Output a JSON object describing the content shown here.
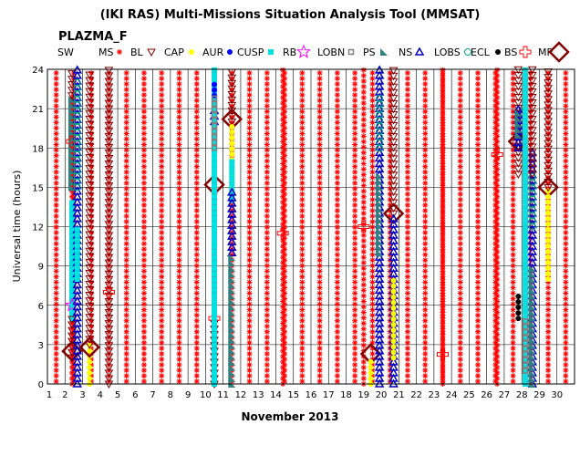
{
  "chart_data": {
    "type": "scatter",
    "title": "(IKI RAS) Multi-Missions Situation Analysis Tool (MMSAT)",
    "subtitle": "PLAZMA_F",
    "xlabel": "November 2013",
    "ylabel": "Universal time (hours)",
    "xlim": [
      1,
      31
    ],
    "ylim": [
      0,
      24
    ],
    "x_ticks": [
      1,
      2,
      3,
      4,
      5,
      6,
      7,
      8,
      9,
      10,
      11,
      12,
      13,
      14,
      15,
      16,
      17,
      18,
      19,
      20,
      21,
      22,
      23,
      24,
      25,
      26,
      27,
      28,
      29,
      30
    ],
    "y_ticks": [
      0,
      3,
      6,
      9,
      12,
      15,
      18,
      21,
      24
    ],
    "grid": true,
    "legend_position": "top",
    "legend": [
      {
        "label": "SW",
        "marker": "none",
        "color": "#000000"
      },
      {
        "label": "MS",
        "marker": "asterisk",
        "color": "#ff0000"
      },
      {
        "label": "BL",
        "marker": "triangle-down",
        "color": "#800000"
      },
      {
        "label": "CAP",
        "marker": "dot",
        "color": "#ffff00"
      },
      {
        "label": "AUR",
        "marker": "dot",
        "color": "#0000ff"
      },
      {
        "label": "CUSP",
        "marker": "square",
        "color": "#00e0e0"
      },
      {
        "label": "RB",
        "marker": "star",
        "color": "#ff00ff"
      },
      {
        "label": "LOBN",
        "marker": "small-square",
        "color": "#808080"
      },
      {
        "label": "PS",
        "marker": "right-triangle",
        "color": "#308080"
      },
      {
        "label": "NS",
        "marker": "triangle-up",
        "color": "#0000c0"
      },
      {
        "label": "LOBS",
        "marker": "circle",
        "color": "#00b080"
      },
      {
        "label": "ECL",
        "marker": "dot",
        "color": "#000000"
      },
      {
        "label": "BS",
        "marker": "cross",
        "color": "#ff0000"
      },
      {
        "label": "MP",
        "marker": "diamond",
        "color": "#800000"
      }
    ],
    "orbits": [
      {
        "x": 2.4,
        "segments": [
          [
            "MS",
            0,
            22
          ],
          [
            "PS",
            15,
            22
          ],
          [
            "CUSP",
            5,
            14
          ],
          [
            "BL",
            2,
            5
          ],
          [
            "RB",
            5,
            7
          ],
          [
            "MP",
            2.5,
            2.5
          ],
          [
            "BS",
            17,
            20
          ],
          [
            "BL",
            22,
            24
          ]
        ]
      },
      {
        "x": 2.7,
        "segments": [
          [
            "NS",
            0,
            24
          ],
          [
            "LOBS",
            15,
            23
          ],
          [
            "CUSP",
            8,
            12
          ]
        ]
      },
      {
        "x": 3.4,
        "segments": [
          [
            "CAP",
            0,
            3
          ],
          [
            "MP",
            2.8,
            2.8
          ],
          [
            "BL",
            3,
            24
          ]
        ]
      },
      {
        "x": 4.5,
        "segments": [
          [
            "BL",
            0,
            24
          ],
          [
            "BS",
            6,
            8
          ]
        ]
      },
      {
        "x": 10.5,
        "segments": [
          [
            "BL",
            0,
            5
          ],
          [
            "MS",
            6,
            15
          ],
          [
            "MP",
            15.2,
            15.2
          ],
          [
            "BS",
            5,
            5
          ],
          [
            "NS",
            20,
            21
          ],
          [
            "CUSP",
            0,
            24
          ],
          [
            "AUR",
            22,
            23
          ],
          [
            "LOBN",
            18,
            22
          ]
        ]
      },
      {
        "x": 11.5,
        "segments": [
          [
            "BL",
            20,
            24
          ],
          [
            "MP",
            20.2,
            20.2
          ],
          [
            "CAP",
            15,
            20
          ],
          [
            "CUSP",
            14,
            17
          ],
          [
            "NS",
            10,
            15
          ],
          [
            "PS",
            0,
            10
          ]
        ]
      },
      {
        "x": 14.4,
        "segments": [
          [
            "MS",
            0,
            24
          ],
          [
            "BS",
            11,
            12
          ]
        ]
      },
      {
        "x": 19.0,
        "segments": [
          [
            "MS",
            0,
            24
          ],
          [
            "BS",
            11,
            13
          ]
        ]
      },
      {
        "x": 19.4,
        "segments": [
          [
            "MP",
            2.3,
            2.3
          ],
          [
            "CAP",
            0,
            2
          ]
        ]
      },
      {
        "x": 19.9,
        "segments": [
          [
            "NS",
            0,
            24
          ],
          [
            "LOBS",
            18,
            22
          ],
          [
            "PS",
            10,
            16
          ]
        ]
      },
      {
        "x": 20.7,
        "segments": [
          [
            "MP",
            13,
            13
          ],
          [
            "BL",
            13,
            24
          ],
          [
            "NS",
            0,
            13
          ],
          [
            "CAP",
            2,
            8
          ]
        ]
      },
      {
        "x": 23.5,
        "segments": [
          [
            "BS",
            1.5,
            3
          ],
          [
            "MS",
            0,
            24
          ]
        ]
      },
      {
        "x": 26.6,
        "segments": [
          [
            "BS",
            17,
            18
          ],
          [
            "MS",
            0,
            24
          ]
        ]
      },
      {
        "x": 27.8,
        "segments": [
          [
            "MP",
            18.5,
            18.5
          ],
          [
            "BL",
            16,
            24
          ],
          [
            "NS",
            18,
            21
          ],
          [
            "PS",
            19,
            21
          ],
          [
            "ECL",
            5,
            7
          ]
        ]
      },
      {
        "x": 28.2,
        "segments": [
          [
            "CUSP",
            0,
            24
          ],
          [
            "LOBN",
            1,
            5
          ]
        ]
      },
      {
        "x": 28.6,
        "segments": [
          [
            "NS",
            0,
            18
          ],
          [
            "LOBS",
            12,
            16
          ],
          [
            "PS",
            0,
            9
          ],
          [
            "BL",
            16,
            24
          ]
        ]
      },
      {
        "x": 29.5,
        "segments": [
          [
            "MP",
            15,
            15
          ],
          [
            "CAP",
            8,
            15
          ],
          [
            "BL",
            15,
            24
          ]
        ]
      }
    ]
  }
}
